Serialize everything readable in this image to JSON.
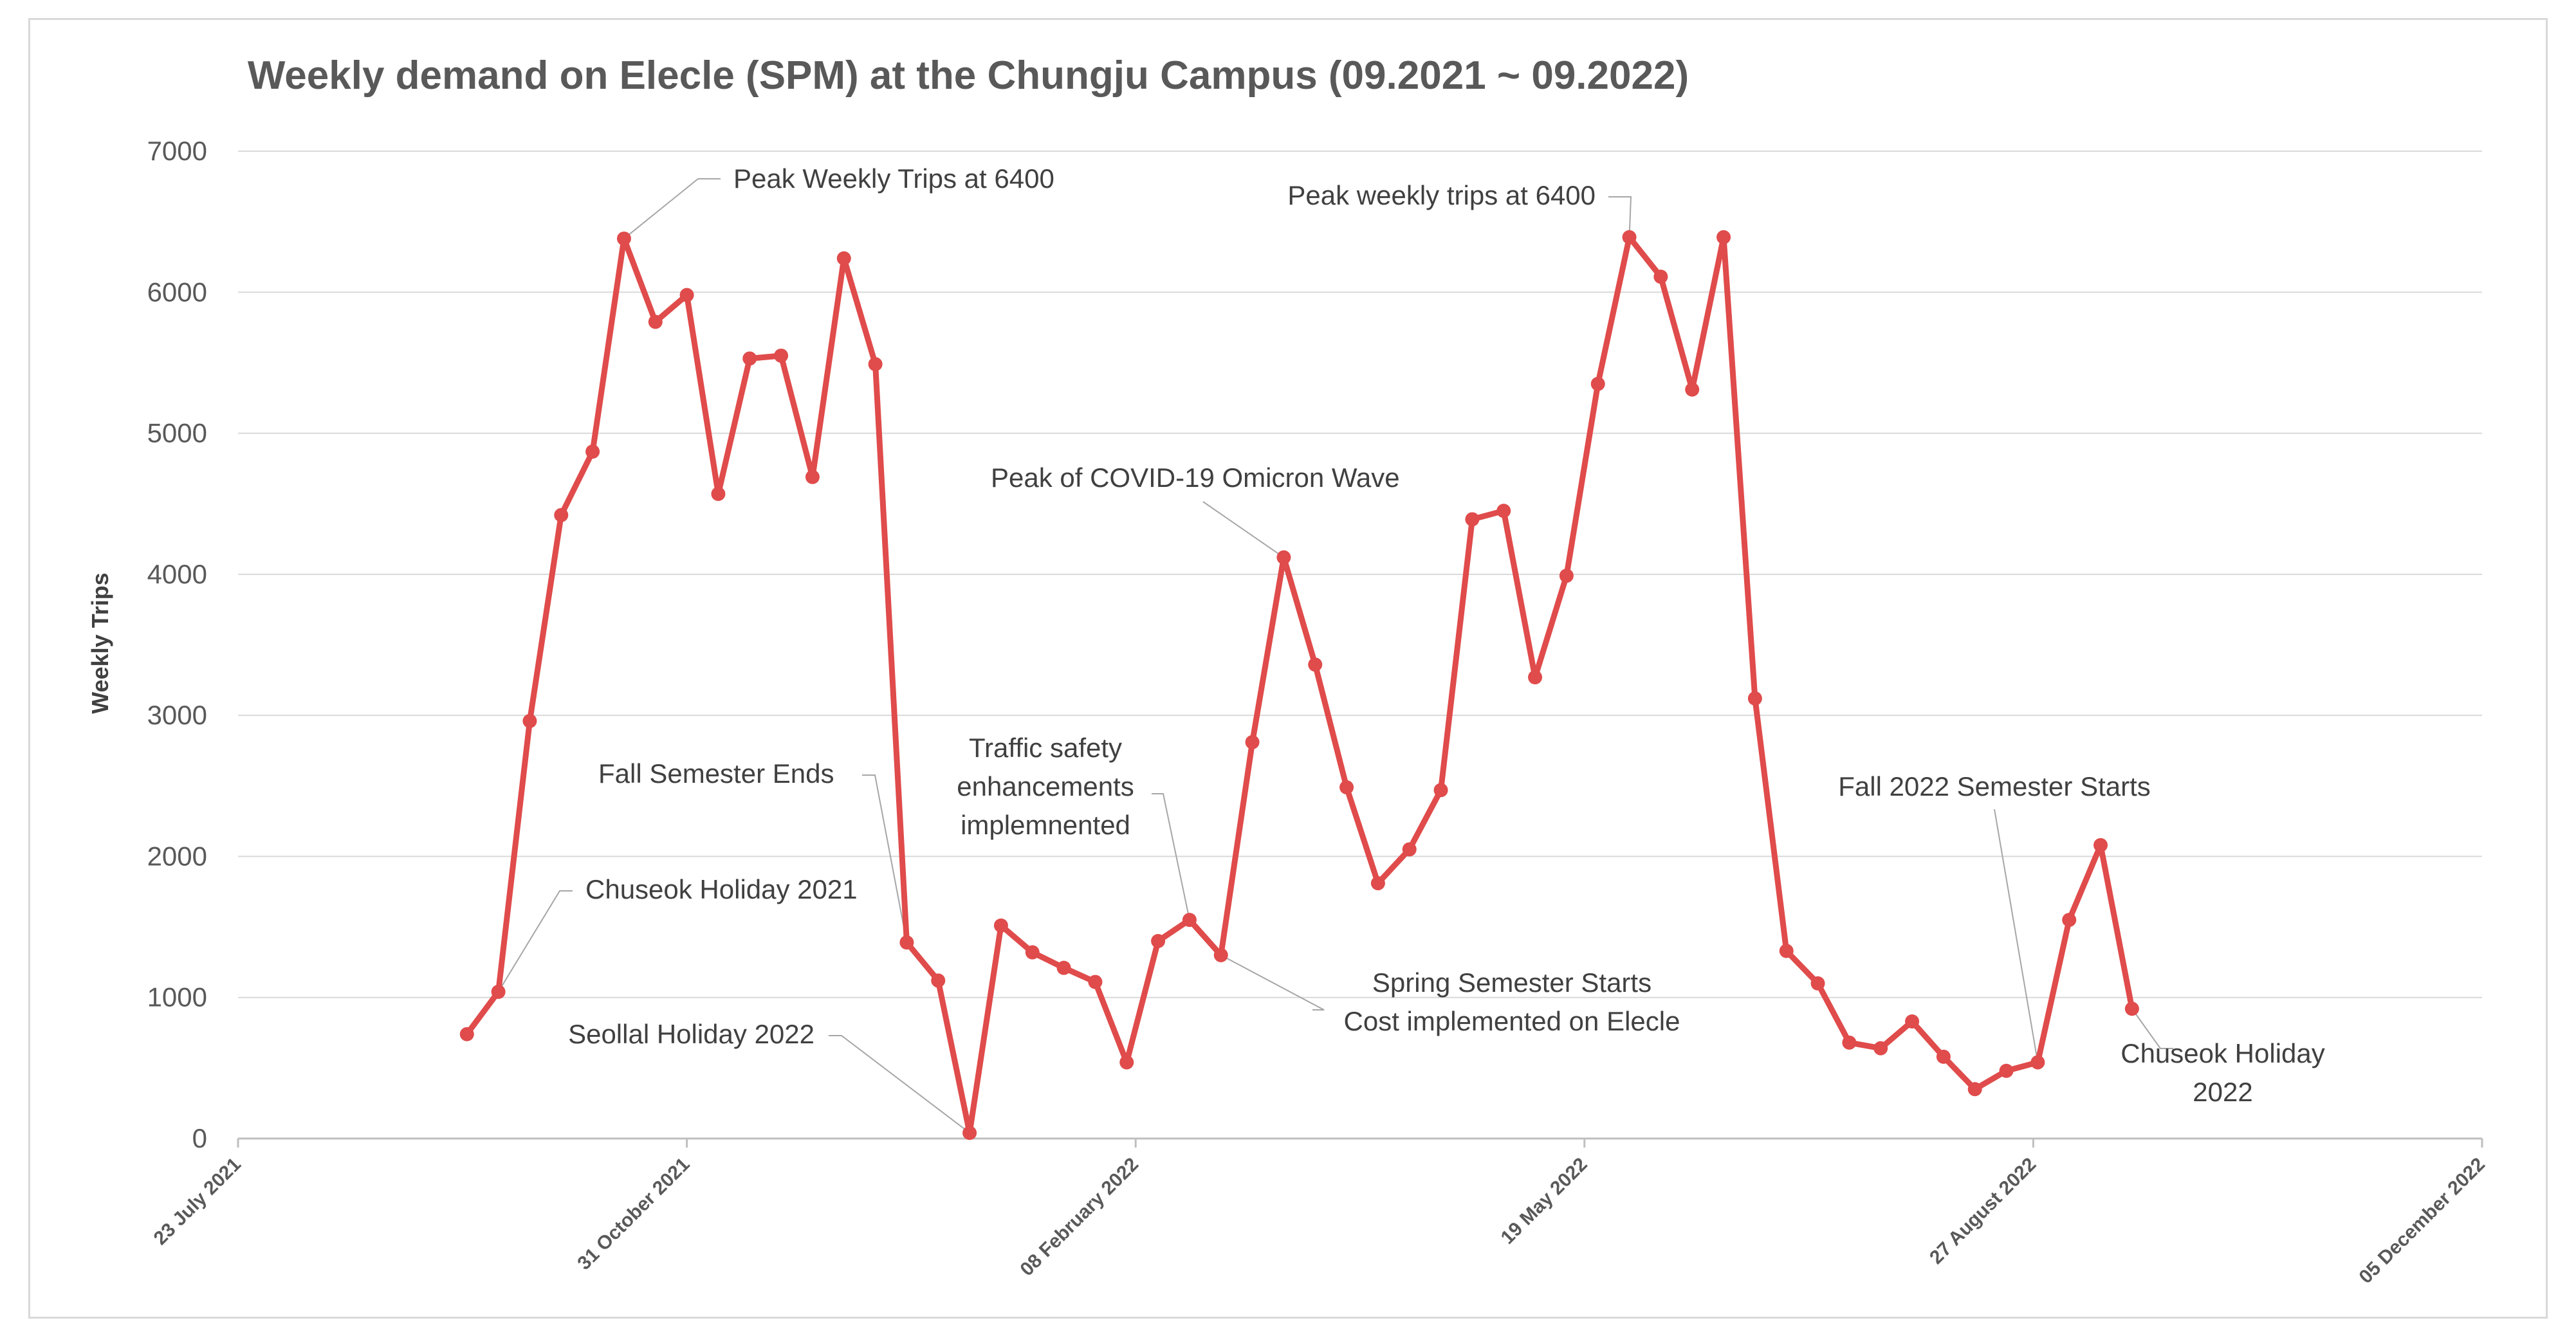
{
  "chart_data": {
    "type": "line",
    "title": "Weekly demand on Elecle (SPM) at the Chungju Campus (09.2021 ~ 09.2022)",
    "ylabel": "Weekly Trips",
    "xlabel": "",
    "ylim": [
      0,
      7000
    ],
    "yticks": [
      0,
      1000,
      2000,
      3000,
      4000,
      5000,
      6000,
      7000
    ],
    "xlim_days": [
      0,
      500
    ],
    "xticks": [
      {
        "day": 0,
        "label": "23 July 2021"
      },
      {
        "day": 100,
        "label": "31 October 2021"
      },
      {
        "day": 200,
        "label": "08 February 2022"
      },
      {
        "day": 300,
        "label": "19 May 2022"
      },
      {
        "day": 400,
        "label": "27 August 2022"
      },
      {
        "day": 500,
        "label": "05 December 2022"
      }
    ],
    "series": [
      {
        "name": "Weekly Trips",
        "color": "#e04b4b",
        "x_days": [
          51,
          58,
          65,
          72,
          79,
          86,
          93,
          100,
          107,
          114,
          121,
          128,
          135,
          142,
          149,
          156,
          163,
          170,
          177,
          184,
          191,
          198,
          205,
          212,
          219,
          226,
          233,
          240,
          247,
          254,
          261,
          268,
          275,
          282,
          289,
          296,
          303,
          310,
          317,
          324,
          331,
          338,
          345,
          352,
          359,
          366,
          373,
          380,
          387,
          394,
          401,
          408,
          415,
          422
        ],
        "values": [
          740,
          1040,
          2960,
          4420,
          4870,
          6380,
          5790,
          5980,
          4570,
          5530,
          5550,
          4690,
          6240,
          5490,
          1390,
          1120,
          40,
          1510,
          1320,
          1210,
          1110,
          540,
          1400,
          1550,
          1300,
          2810,
          4120,
          3360,
          2490,
          1810,
          2050,
          2470,
          4390,
          4450,
          3270,
          3990,
          5350,
          6390,
          6110,
          5310,
          6390,
          3120,
          1330,
          1100,
          680,
          640,
          830,
          580,
          350,
          480,
          540,
          1550,
          2080,
          920
        ]
      }
    ],
    "annotations": [
      {
        "index": 5,
        "lines": [
          "Peak Weekly Trips at 6400"
        ]
      },
      {
        "index": 37,
        "lines": [
          "Peak weekly trips at 6400"
        ]
      },
      {
        "index": 26,
        "lines": [
          "Peak of COVID-19 Omicron Wave"
        ]
      },
      {
        "index": 14,
        "lines": [
          "Fall Semester Ends"
        ]
      },
      {
        "index": 23,
        "lines": [
          "Traffic safety",
          "enhancements",
          "implemnented"
        ]
      },
      {
        "index": 1,
        "lines": [
          "Chuseok Holiday 2021"
        ]
      },
      {
        "index": 16,
        "lines": [
          "Seollal Holiday 2022"
        ]
      },
      {
        "index": 24,
        "lines": [
          "Spring Semester Starts",
          "Cost implemented on Elecle"
        ]
      },
      {
        "index": 50,
        "lines": [
          "Fall 2022 Semester Starts"
        ]
      },
      {
        "index": 53,
        "lines": [
          "Chuseok Holiday",
          "2022"
        ]
      }
    ]
  }
}
